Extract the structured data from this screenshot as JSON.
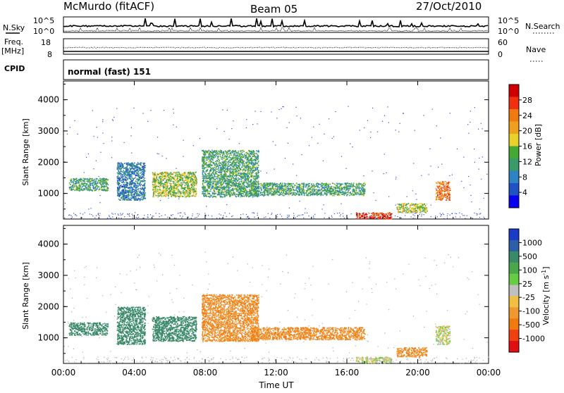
{
  "header": {
    "station": "McMurdo (fitACF)",
    "beam": "Beam 05",
    "date": "27/Oct/2010"
  },
  "top_panels": {
    "nsky_label": "N.Sky",
    "nsky_hi": "10^5",
    "nsky_lo": "10^0",
    "nsearch_label": "N.Search",
    "nsearch_hi": "10^5",
    "nsearch_lo": "10^0",
    "freq_label": "Freq.",
    "freq_unit": "[MHz]",
    "freq_hi": "18",
    "freq_lo": "8",
    "nave_label": "Nave",
    "nave_hi": "60",
    "nave_lo": "0",
    "cpid_label": "CPID",
    "cpid_value": "normal (fast) 151"
  },
  "power_panel": {
    "ylabel": "Slant Range [km]",
    "yticks": [
      "1000",
      "2000",
      "3000",
      "4000"
    ],
    "colorbar_title": "Power [dB]",
    "colorbar_ticks": [
      "4",
      "8",
      "12",
      "16",
      "20",
      "24",
      "28"
    ],
    "colorbar_colors": [
      "#0a00f0",
      "#1f52c4",
      "#2d83c4",
      "#3a9a6a",
      "#44a832",
      "#e8d22a",
      "#f0a020",
      "#f07a10",
      "#f03010",
      "#d00000"
    ]
  },
  "velocity_panel": {
    "ylabel": "Slant Range [km]",
    "yticks": [
      "1000",
      "2000",
      "3000",
      "4000"
    ],
    "colorbar_title": "Velocity [m s",
    "colorbar_unit_sup": "-1",
    "colorbar_close": "]",
    "colorbar_ticks": [
      "1000",
      "500",
      "100",
      "25",
      "-25",
      "-100",
      "-500",
      "-1000"
    ],
    "colorbar_colors": [
      "#1a3cc8",
      "#2c5fa8",
      "#3a8a6a",
      "#4aa84a",
      "#66cc44",
      "#c0c0c0",
      "#f0c040",
      "#f09830",
      "#f07a10",
      "#f04010",
      "#e01010"
    ]
  },
  "xaxis": {
    "label": "Time UT",
    "ticks": [
      "00:00",
      "04:00",
      "08:00",
      "12:00",
      "16:00",
      "20:00",
      "00:00"
    ]
  },
  "chart_data": [
    {
      "type": "heatmap",
      "title": "Power",
      "xlabel": "Time UT",
      "ylabel": "Slant Range [km]",
      "xlim": [
        0,
        24
      ],
      "ylim": [
        180,
        4600
      ],
      "colorbar": {
        "label": "Power [dB]",
        "ticks": [
          4,
          8,
          12,
          16,
          20,
          24,
          28
        ]
      },
      "echo_regions": [
        {
          "t_start": 0.3,
          "t_end": 2.5,
          "r_start": 1100,
          "r_end": 1500,
          "power_db": 12
        },
        {
          "t_start": 3.0,
          "t_end": 4.6,
          "r_start": 800,
          "r_end": 2000,
          "power_db": 8
        },
        {
          "t_start": 5.0,
          "t_end": 7.5,
          "r_start": 900,
          "r_end": 1700,
          "power_db": 16
        },
        {
          "t_start": 7.8,
          "t_end": 11.0,
          "r_start": 900,
          "r_end": 2400,
          "power_db": 12
        },
        {
          "t_start": 10.5,
          "t_end": 17.0,
          "r_start": 950,
          "r_end": 1350,
          "power_db": 12
        },
        {
          "t_start": 16.5,
          "t_end": 18.5,
          "r_start": 200,
          "r_end": 400,
          "power_db": 28
        },
        {
          "t_start": 18.8,
          "t_end": 20.5,
          "r_start": 400,
          "r_end": 700,
          "power_db": 16
        },
        {
          "t_start": 21.0,
          "t_end": 21.8,
          "r_start": 800,
          "r_end": 1400,
          "power_db": 24
        }
      ]
    },
    {
      "type": "heatmap",
      "title": "Velocity",
      "xlabel": "Time UT",
      "ylabel": "Slant Range [km]",
      "xlim": [
        0,
        24
      ],
      "ylim": [
        180,
        4600
      ],
      "colorbar": {
        "label": "Velocity [m s-1]",
        "ticks": [
          1000,
          500,
          100,
          25,
          -25,
          -100,
          -500,
          -1000
        ]
      },
      "echo_regions": [
        {
          "t_start": 0.3,
          "t_end": 2.5,
          "r_start": 1100,
          "r_end": 1500,
          "velocity": 300
        },
        {
          "t_start": 3.0,
          "t_end": 4.6,
          "r_start": 800,
          "r_end": 2000,
          "velocity": 300
        },
        {
          "t_start": 5.0,
          "t_end": 7.5,
          "r_start": 900,
          "r_end": 1700,
          "velocity": 300
        },
        {
          "t_start": 7.8,
          "t_end": 11.0,
          "r_start": 900,
          "r_end": 2400,
          "velocity": -200
        },
        {
          "t_start": 10.5,
          "t_end": 17.0,
          "r_start": 950,
          "r_end": 1350,
          "velocity": -200
        },
        {
          "t_start": 16.5,
          "t_end": 18.5,
          "r_start": 200,
          "r_end": 400,
          "velocity": 0
        },
        {
          "t_start": 18.8,
          "t_end": 20.5,
          "r_start": 400,
          "r_end": 700,
          "velocity": -200
        },
        {
          "t_start": 21.0,
          "t_end": 21.8,
          "r_start": 800,
          "r_end": 1400,
          "velocity": 0
        }
      ]
    }
  ]
}
